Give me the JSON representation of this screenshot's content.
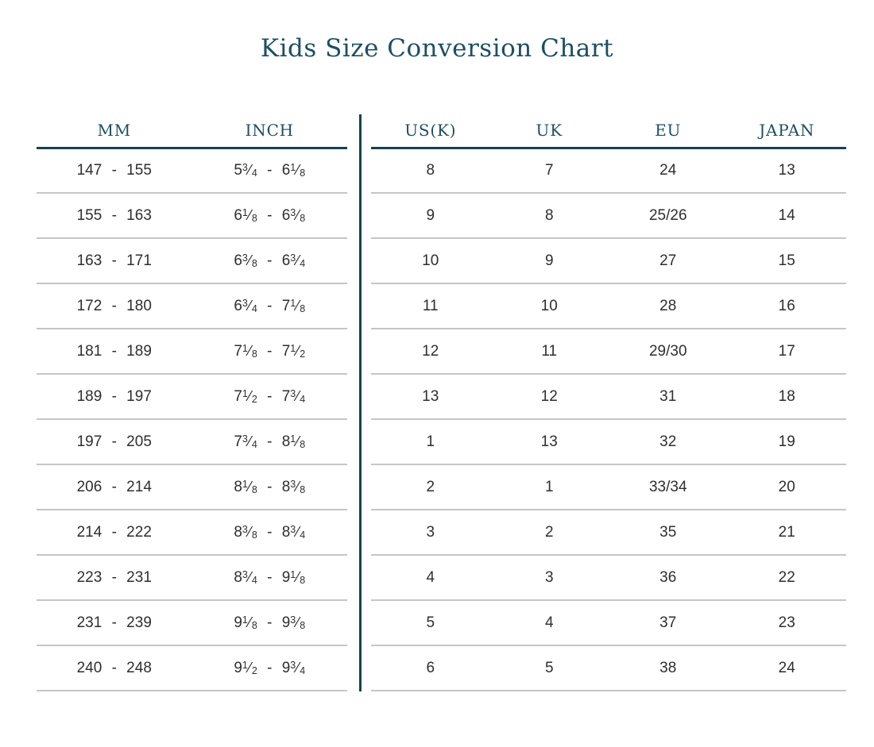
{
  "chart_data": {
    "type": "table",
    "title": "Kids Size Conversion Chart",
    "left_columns": [
      "MM",
      "INCH"
    ],
    "right_columns": [
      "US(K)",
      "UK",
      "EU",
      "JAPAN"
    ],
    "rows": [
      {
        "mm": "147 - 155",
        "inch": "5 3/4 - 6 1/8",
        "us_k": "8",
        "uk": "7",
        "eu": "24",
        "japan": "13"
      },
      {
        "mm": "155 - 163",
        "inch": "6 1/8 - 6 3/8",
        "us_k": "9",
        "uk": "8",
        "eu": "25/26",
        "japan": "14"
      },
      {
        "mm": "163 - 171",
        "inch": "6 3/8 - 6 3/4",
        "us_k": "10",
        "uk": "9",
        "eu": "27",
        "japan": "15"
      },
      {
        "mm": "172 - 180",
        "inch": "6 3/4 - 7 1/8",
        "us_k": "11",
        "uk": "10",
        "eu": "28",
        "japan": "16"
      },
      {
        "mm": "181 - 189",
        "inch": "7 1/8 - 7 1/2",
        "us_k": "12",
        "uk": "11",
        "eu": "29/30",
        "japan": "17"
      },
      {
        "mm": "189 - 197",
        "inch": "7 1/2 - 7 3/4",
        "us_k": "13",
        "uk": "12",
        "eu": "31",
        "japan": "18"
      },
      {
        "mm": "197 - 205",
        "inch": "7 3/4 - 8 1/8",
        "us_k": "1",
        "uk": "13",
        "eu": "32",
        "japan": "19"
      },
      {
        "mm": "206 - 214",
        "inch": "8 1/8 - 8 3/8",
        "us_k": "2",
        "uk": "1",
        "eu": "33/34",
        "japan": "20"
      },
      {
        "mm": "214 - 222",
        "inch": "8 3/8 - 8 3/4",
        "us_k": "3",
        "uk": "2",
        "eu": "35",
        "japan": "21"
      },
      {
        "mm": "223 - 231",
        "inch": "8 3/4 - 9 1/8",
        "us_k": "4",
        "uk": "3",
        "eu": "36",
        "japan": "22"
      },
      {
        "mm": "231 - 239",
        "inch": "9 1/8 - 9 3/8",
        "us_k": "5",
        "uk": "4",
        "eu": "37",
        "japan": "23"
      },
      {
        "mm": "240 - 248",
        "inch": "9 1/2 - 9 3/4",
        "us_k": "6",
        "uk": "5",
        "eu": "38",
        "japan": "24"
      }
    ]
  },
  "colors": {
    "accent_teal": "#1C4F63",
    "header_rule": "#16424F",
    "row_rule": "#C6C6C6",
    "body_text": "#2E2E2E",
    "background": "#FFFFFF"
  }
}
